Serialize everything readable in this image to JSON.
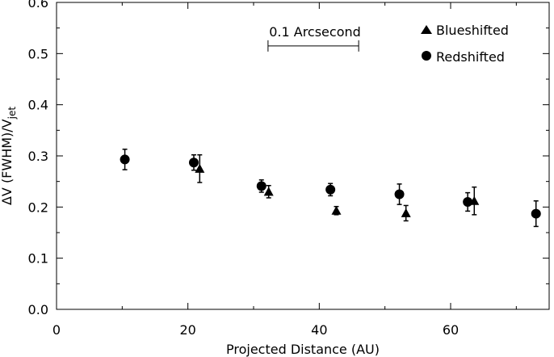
{
  "chart_data": {
    "type": "scatter",
    "xlabel": "Projected Distance (AU)",
    "ylabel": {
      "main": "ΔV (FWHM)/V",
      "subscript": "jet"
    },
    "xlim": [
      0,
      75
    ],
    "ylim": [
      0.0,
      0.6
    ],
    "xticks": [
      0,
      20,
      40,
      60
    ],
    "yticks": [
      0.0,
      0.1,
      0.2,
      0.3,
      0.4,
      0.5,
      0.6
    ],
    "xtick_labels": [
      "0",
      "20",
      "40",
      "60"
    ],
    "ytick_labels": [
      "0.0",
      "0.1",
      "0.2",
      "0.3",
      "0.4",
      "0.5",
      "0.6"
    ],
    "grid": false,
    "legend_position": "top-right",
    "scale_bar": {
      "label": "0.1 Arcsecond",
      "x_start": 32.2,
      "x_end": 46.0,
      "y": 0.515
    },
    "series": [
      {
        "name": "Blueshifted",
        "marker": "triangle",
        "points": [
          {
            "x": 21.8,
            "y": 0.275,
            "err": 0.027
          },
          {
            "x": 32.3,
            "y": 0.23,
            "err": 0.012
          },
          {
            "x": 42.6,
            "y": 0.193,
            "err": 0.008
          },
          {
            "x": 53.2,
            "y": 0.188,
            "err": 0.015
          },
          {
            "x": 63.6,
            "y": 0.212,
            "err": 0.027
          }
        ]
      },
      {
        "name": "Redshifted",
        "marker": "circle",
        "points": [
          {
            "x": 10.4,
            "y": 0.293,
            "err": 0.02
          },
          {
            "x": 20.9,
            "y": 0.287,
            "err": 0.015
          },
          {
            "x": 31.2,
            "y": 0.241,
            "err": 0.012
          },
          {
            "x": 41.7,
            "y": 0.234,
            "err": 0.012
          },
          {
            "x": 52.2,
            "y": 0.225,
            "err": 0.02
          },
          {
            "x": 62.6,
            "y": 0.21,
            "err": 0.018
          },
          {
            "x": 73.0,
            "y": 0.187,
            "err": 0.025
          }
        ]
      }
    ]
  }
}
